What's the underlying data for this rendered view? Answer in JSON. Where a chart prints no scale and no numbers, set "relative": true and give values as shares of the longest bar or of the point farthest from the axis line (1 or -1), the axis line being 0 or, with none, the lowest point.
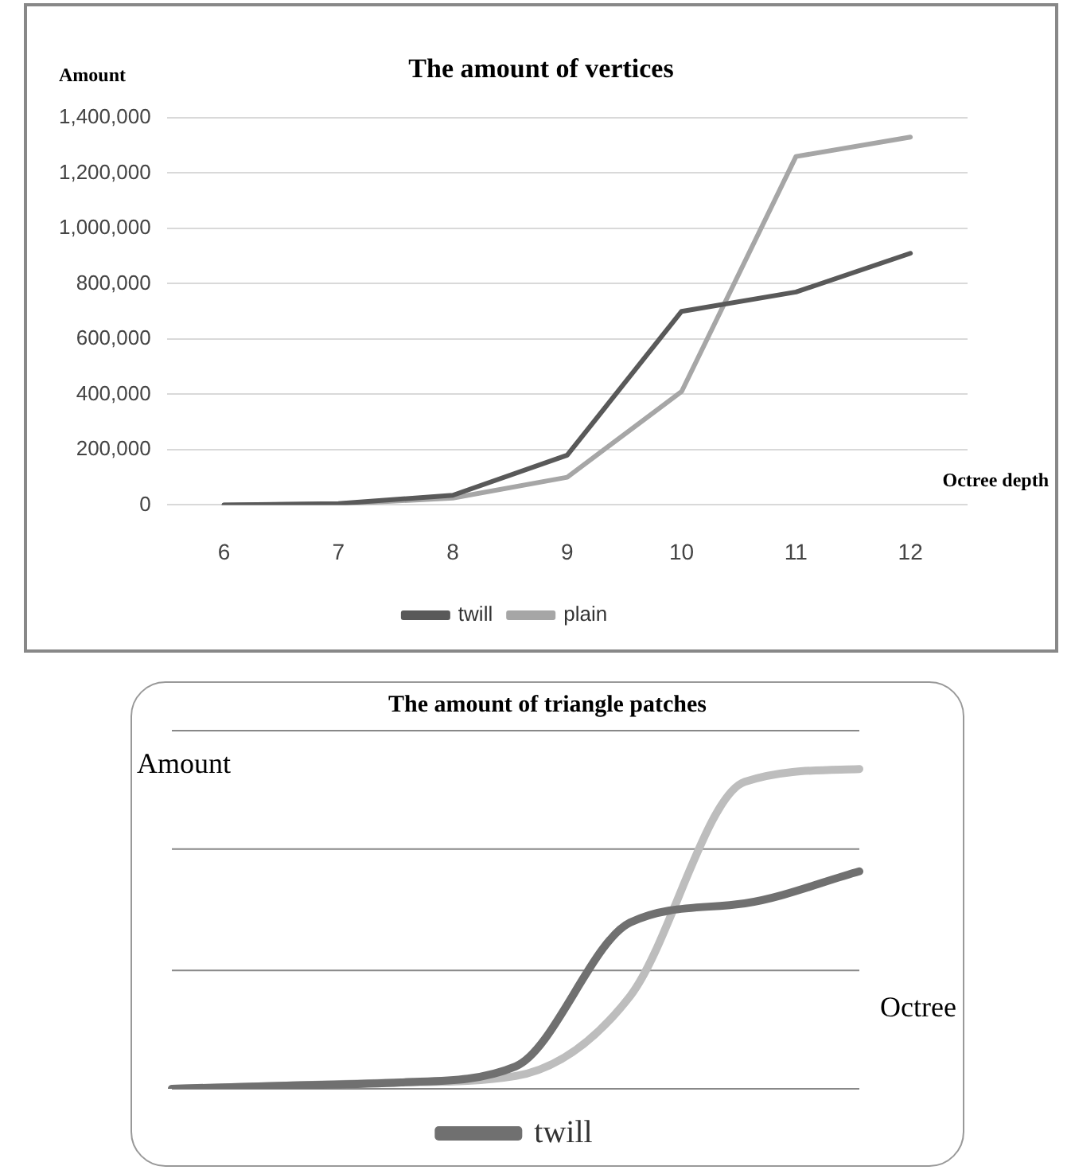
{
  "chart_data": [
    {
      "type": "line",
      "title": "The amount of vertices",
      "ylabel": "Amount",
      "xlabel": "Octree depth",
      "categories": [
        "6",
        "7",
        "8",
        "9",
        "10",
        "11",
        "12"
      ],
      "series": [
        {
          "name": "twill",
          "color": "#595959",
          "values": [
            0,
            5000,
            35000,
            180000,
            700000,
            770000,
            910000
          ]
        },
        {
          "name": "plain",
          "color": "#a6a6a6",
          "values": [
            0,
            3000,
            25000,
            100000,
            410000,
            1260000,
            1330000
          ]
        }
      ],
      "ylim": [
        0,
        1400000
      ],
      "yticks": [
        {
          "value": 0,
          "label": "0"
        },
        {
          "value": 200000,
          "label": "200,000"
        },
        {
          "value": 400000,
          "label": "400,000"
        },
        {
          "value": 600000,
          "label": "600,000"
        },
        {
          "value": 800000,
          "label": "800,000"
        },
        {
          "value": 1000000,
          "label": "1,000,000"
        },
        {
          "value": 1200000,
          "label": "1,200,000"
        },
        {
          "value": 1400000,
          "label": "1,400,000"
        }
      ],
      "grid": "y",
      "legend": "bottom"
    },
    {
      "type": "line",
      "title": "The amount of triangle patches",
      "ylabel": "Amount",
      "xlabel": "Octree",
      "relative": true,
      "categories": [
        null,
        null,
        null,
        null,
        null,
        null,
        null
      ],
      "series": [
        {
          "name": "twill",
          "color": "#707070",
          "values": [
            0,
            0.01,
            0.02,
            0.07,
            0.52,
            0.58,
            0.68
          ]
        },
        {
          "color": "#bdbdbd",
          "values": [
            0,
            0.01,
            0.02,
            0.04,
            0.29,
            0.96,
            1
          ]
        }
      ],
      "ref_lines": [
        {
          "axis": "y",
          "value": 0,
          "color": "#888888"
        },
        {
          "axis": "y",
          "value": 0.37,
          "color": "#888888"
        },
        {
          "axis": "y",
          "value": 0.75,
          "color": "#888888"
        },
        {
          "axis": "y",
          "value": 1.12,
          "color": "#888888"
        }
      ],
      "legend": "bottom"
    }
  ]
}
